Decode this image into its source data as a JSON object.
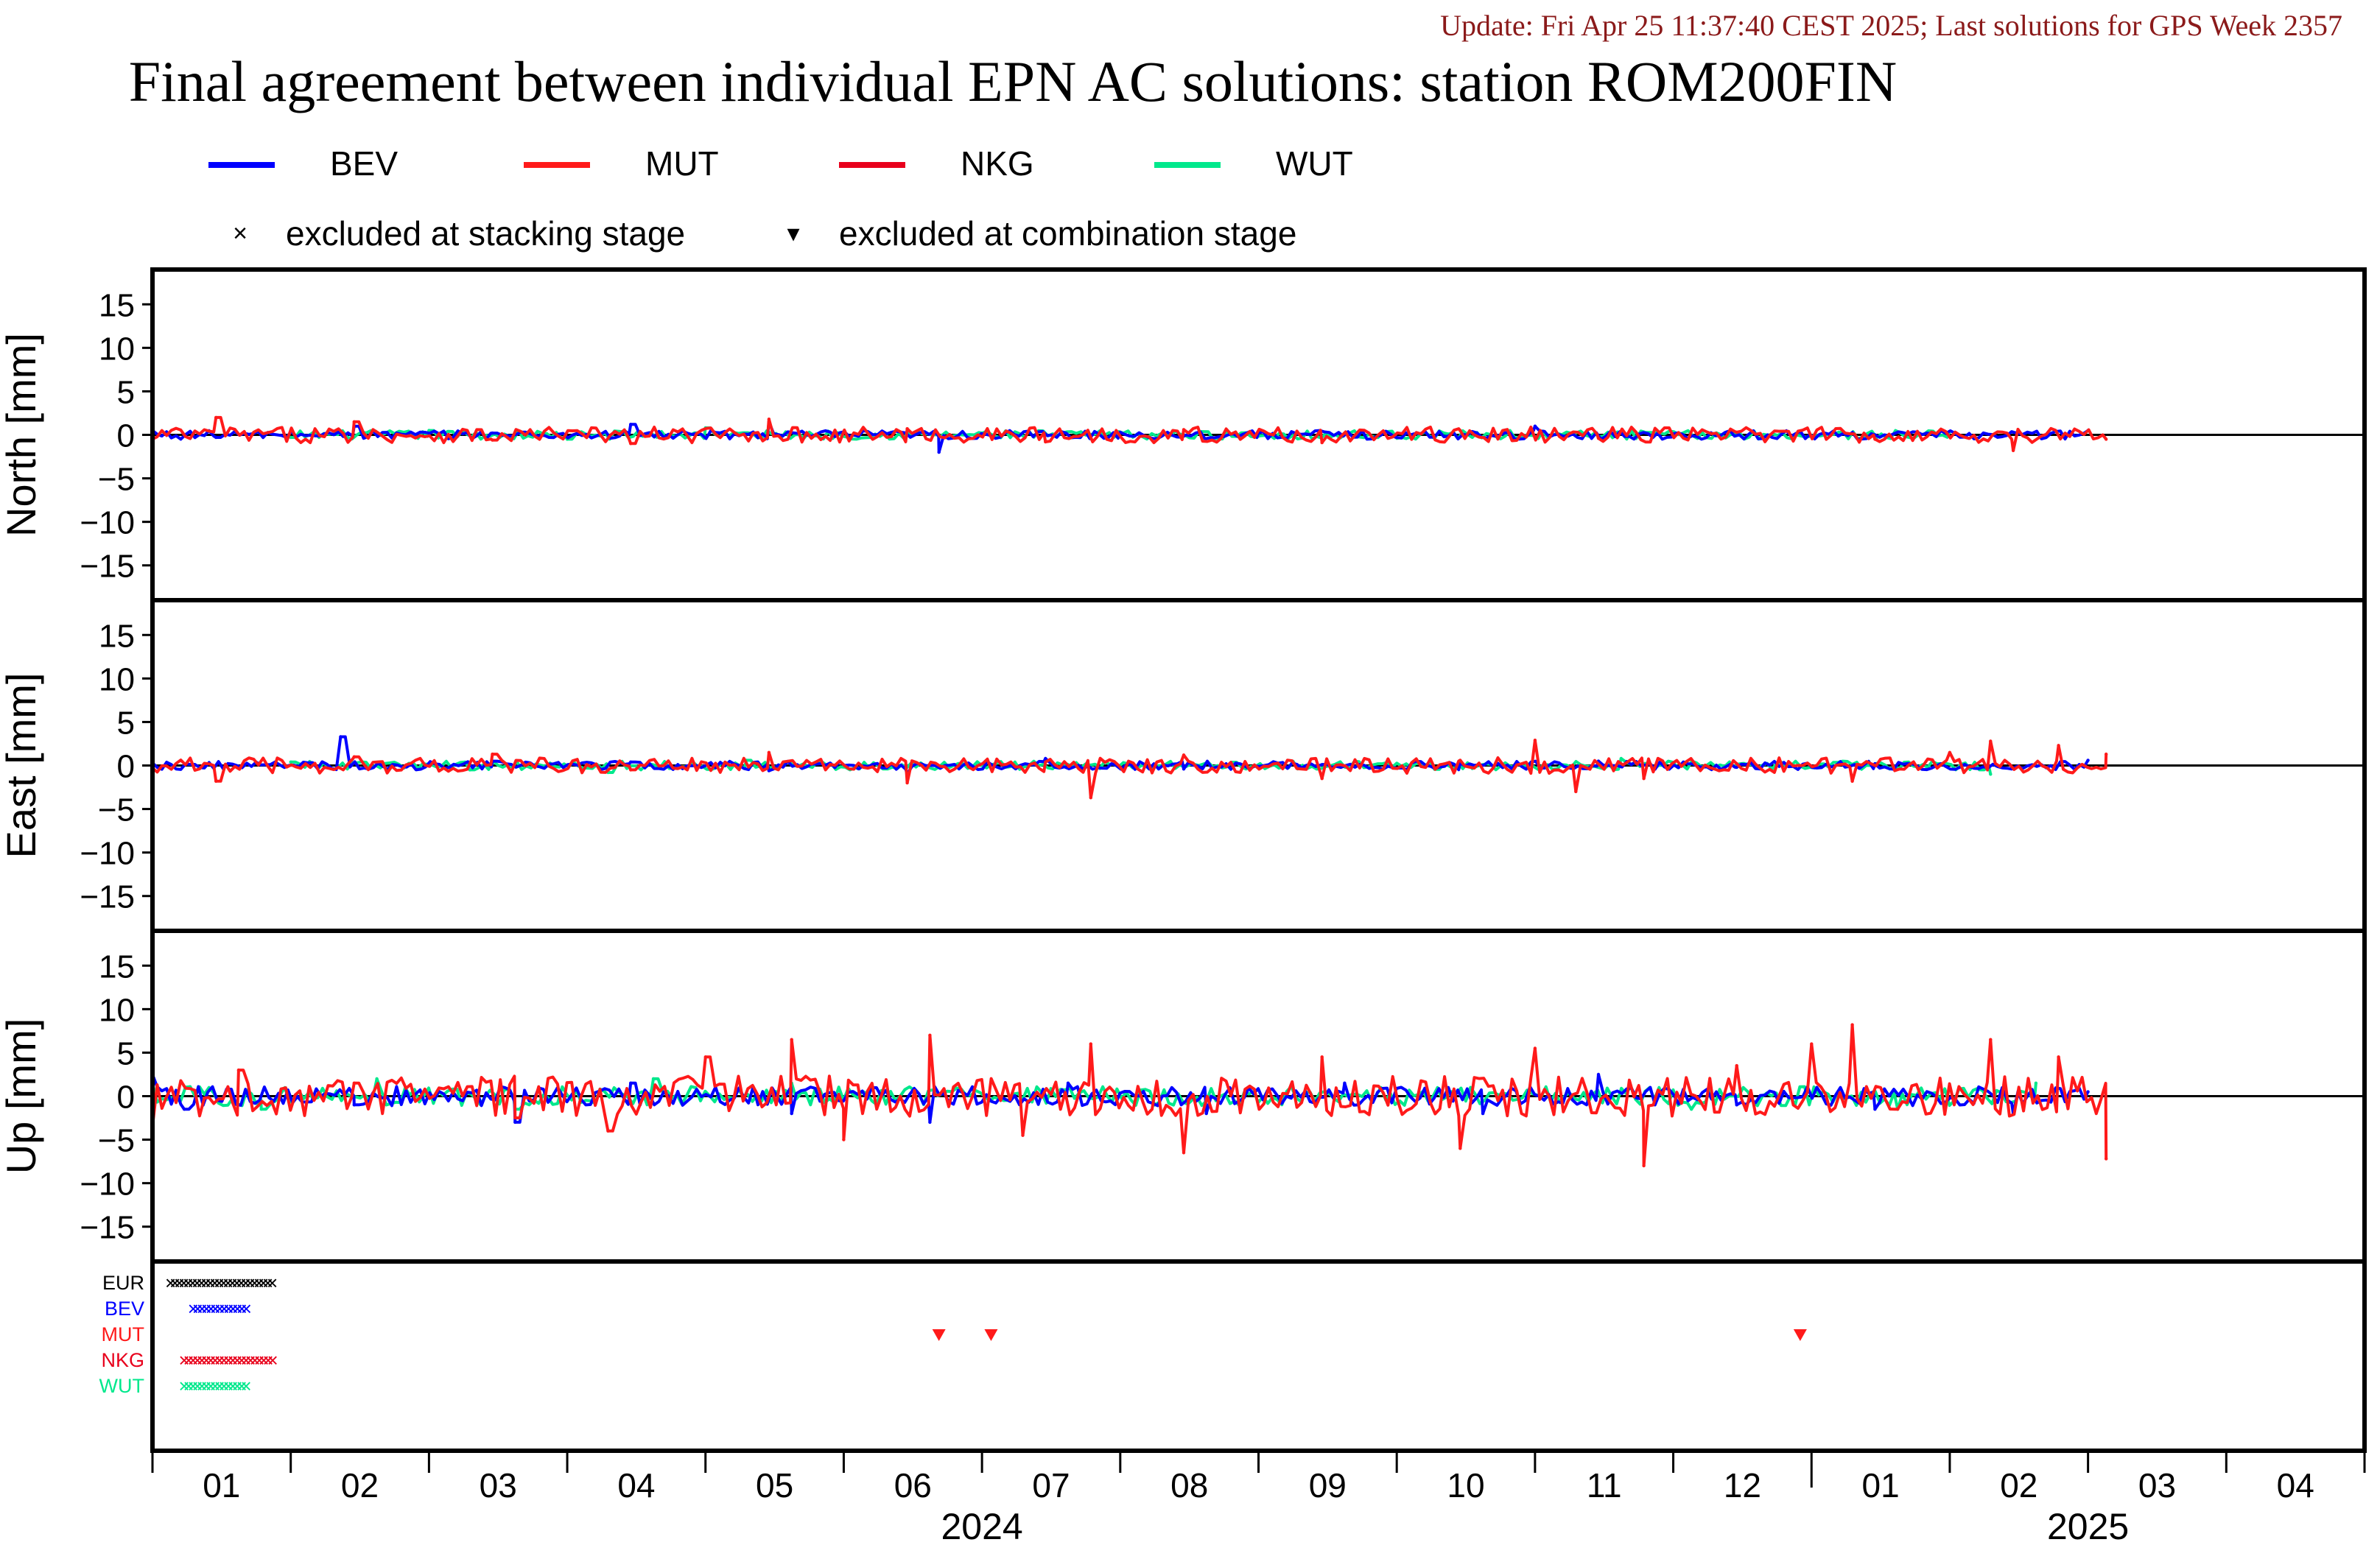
{
  "update_text": "Update: Fri Apr 25 11:37:40 CEST 2025; Last solutions for GPS Week 2357",
  "title": "Final agreement between individual EPN AC solutions: station ROM200FIN",
  "colors": {
    "update": "#8b1a1a",
    "BEV": "#0000ff",
    "MUT": "#ff1a1a",
    "NKG": "#e8001c",
    "WUT": "#00e88c",
    "EUR": "#000000",
    "zero_line": "#000000"
  },
  "legend": {
    "series": [
      {
        "name": "BEV",
        "color": "#0000ff"
      },
      {
        "name": "MUT",
        "color": "#ff1a1a"
      },
      {
        "name": "NKG",
        "color": "#e8001c"
      },
      {
        "name": "WUT",
        "color": "#00e88c"
      }
    ],
    "markers": [
      {
        "symbol": "×",
        "label": "excluded at stacking stage"
      },
      {
        "symbol": "▾",
        "label": "excluded at combination stage"
      }
    ]
  },
  "chart_data": {
    "type": "line",
    "x_unit": "month",
    "xlim": [
      "2024-01",
      "2025-04"
    ],
    "x_tick_labels": [
      "01",
      "02",
      "03",
      "04",
      "05",
      "06",
      "07",
      "08",
      "09",
      "10",
      "11",
      "12",
      "01",
      "02",
      "03",
      "04"
    ],
    "year_labels": [
      {
        "label": "2024",
        "month": "2024-07"
      },
      {
        "label": "2025",
        "month": "2025-03"
      }
    ],
    "ylim": [
      -19,
      19
    ],
    "y_ticks": [
      15,
      10,
      5,
      0,
      -5,
      -10,
      -15
    ],
    "grid": false,
    "legend_position": "top",
    "panels": [
      {
        "ylabel": "North [mm]",
        "series": [
          {
            "name": "BEV",
            "x": [
              "2024-01-01",
              "2024-01-15",
              "2024-02-15",
              "2024-03-15",
              "2024-04-15",
              "2024-05-15",
              "2024-06-22",
              "2024-08-01",
              "2024-09-01",
              "2024-10-01",
              "2024-11-01",
              "2024-12-01",
              "2025-01-15",
              "2025-02-15",
              "2025-03-01"
            ],
            "y": [
              0.5,
              -0.3,
              1.0,
              0.2,
              1.2,
              1.5,
              -2.0,
              0.3,
              0.2,
              -0.3,
              1.0,
              0.1,
              0.0,
              0.3,
              0.5
            ]
          },
          {
            "name": "MUT",
            "x": [
              "2024-01-01",
              "2024-01-15",
              "2024-02-15",
              "2024-03-15",
              "2024-04-15",
              "2024-05-15",
              "2024-06-15",
              "2024-07-15",
              "2024-08-15",
              "2024-09-15",
              "2024-10-15",
              "2024-11-15",
              "2024-12-15",
              "2025-01-15",
              "2025-02-15",
              "2025-03-05"
            ],
            "y": [
              -0.5,
              2.0,
              1.5,
              -0.6,
              -1.0,
              1.8,
              0.7,
              -0.8,
              0.6,
              -0.9,
              0.5,
              -0.4,
              0.3,
              -0.5,
              -1.8,
              -0.5
            ]
          },
          {
            "name": "WUT",
            "x": [
              "2024-02-01",
              "2024-03-01",
              "2024-04-01",
              "2024-05-01",
              "2024-07-01",
              "2024-11-15",
              "2025-02-01"
            ],
            "y": [
              -0.3,
              0.5,
              -0.5,
              0.8,
              0.2,
              -0.2,
              0.4
            ]
          }
        ]
      },
      {
        "ylabel": "East [mm]",
        "series": [
          {
            "name": "BEV",
            "x": [
              "2024-01-01",
              "2024-02-12",
              "2024-03-15",
              "2024-04-15",
              "2024-05-15",
              "2024-06-15",
              "2024-07-15",
              "2024-08-15",
              "2024-09-15",
              "2024-10-15",
              "2024-11-15",
              "2024-12-15",
              "2025-01-15",
              "2025-02-15",
              "2025-03-01"
            ],
            "y": [
              0.3,
              3.3,
              0.5,
              0.4,
              -0.6,
              -1.0,
              0.8,
              -0.4,
              0.1,
              0.3,
              0.5,
              -0.2,
              0.2,
              -0.3,
              0.6
            ]
          },
          {
            "name": "MUT",
            "x": [
              "2024-01-01",
              "2024-01-15",
              "2024-02-15",
              "2024-03-15",
              "2024-04-15",
              "2024-05-15",
              "2024-06-15",
              "2024-07-15",
              "2024-07-25",
              "2024-08-15",
              "2024-09-15",
              "2024-10-15",
              "2024-11-01",
              "2024-11-10",
              "2024-11-25",
              "2024-12-15",
              "2025-01-10",
              "2025-02-01",
              "2025-02-10",
              "2025-02-25",
              "2025-03-05"
            ],
            "y": [
              -0.3,
              -1.8,
              1.0,
              1.3,
              -0.5,
              1.5,
              -2.0,
              0.4,
              -3.7,
              1.2,
              -1.5,
              0.6,
              2.9,
              -3.0,
              -1.5,
              0.2,
              -1.8,
              1.5,
              2.8,
              2.3,
              1.3
            ]
          },
          {
            "name": "WUT",
            "x": [
              "2024-02-01",
              "2024-03-10",
              "2024-04-10",
              "2024-05-10",
              "2024-11-20",
              "2025-02-10"
            ],
            "y": [
              0.4,
              -0.5,
              -0.8,
              0.6,
              0.8,
              -1.0
            ]
          }
        ]
      },
      {
        "ylabel": "Up [mm]",
        "series": [
          {
            "name": "BEV",
            "x": [
              "2024-01-01",
              "2024-01-08",
              "2024-02-15",
              "2024-03-20",
              "2024-04-15",
              "2024-05-20",
              "2024-06-20",
              "2024-07-20",
              "2024-08-20",
              "2024-09-20",
              "2024-10-20",
              "2024-11-15",
              "2024-12-15",
              "2025-01-15",
              "2025-02-15",
              "2025-03-01"
            ],
            "y": [
              2.5,
              -1.5,
              -1.0,
              -3.0,
              1.5,
              -2.0,
              -3.0,
              1.5,
              -2.0,
              1.5,
              -2.0,
              2.5,
              -1.0,
              -1.5,
              -2.0,
              0.5
            ]
          },
          {
            "name": "MUT",
            "x": [
              "2024-01-01",
              "2024-01-20",
              "2024-02-15",
              "2024-03-20",
              "2024-04-10",
              "2024-05-01",
              "2024-05-20",
              "2024-06-01",
              "2024-06-20",
              "2024-07-10",
              "2024-07-25",
              "2024-08-15",
              "2024-09-15",
              "2024-10-15",
              "2024-11-01",
              "2024-11-25",
              "2024-12-15",
              "2025-01-01",
              "2025-01-10",
              "2025-01-20",
              "2025-02-10",
              "2025-02-25",
              "2025-03-05"
            ],
            "y": [
              -3.5,
              3.0,
              1.5,
              -2.5,
              -4.0,
              4.5,
              6.5,
              -5.0,
              7.0,
              -4.5,
              6.0,
              -6.5,
              4.5,
              -6.0,
              5.5,
              -8.0,
              3.5,
              6.0,
              8.2,
              -1.5,
              6.5,
              4.5,
              -7.2
            ]
          },
          {
            "name": "WUT",
            "x": [
              "2024-01-01",
              "2024-01-25",
              "2024-02-20",
              "2024-03-20",
              "2024-04-20",
              "2024-05-20",
              "2024-12-05",
              "2025-01-20",
              "2025-02-20"
            ],
            "y": [
              1.5,
              -1.5,
              2.0,
              -1.5,
              2.0,
              1.5,
              -1.5,
              -1.5,
              1.5
            ]
          }
        ]
      }
    ],
    "exclusions": {
      "rows": [
        {
          "label": "EUR",
          "color": "#000000",
          "stacking_range": [
            "2024-01-05",
            "2024-01-28"
          ]
        },
        {
          "label": "BEV",
          "color": "#0000ff",
          "stacking_range": [
            "2024-01-10",
            "2024-01-22"
          ]
        },
        {
          "label": "MUT",
          "color": "#ff1a1a",
          "combination_dates": [
            "2024-06-22",
            "2024-07-03",
            "2024-12-29"
          ]
        },
        {
          "label": "NKG",
          "color": "#e8001c",
          "stacking_range": [
            "2024-01-08",
            "2024-01-28"
          ]
        },
        {
          "label": "WUT",
          "color": "#00e88c",
          "stacking_range": [
            "2024-01-08",
            "2024-01-22"
          ]
        }
      ]
    }
  }
}
